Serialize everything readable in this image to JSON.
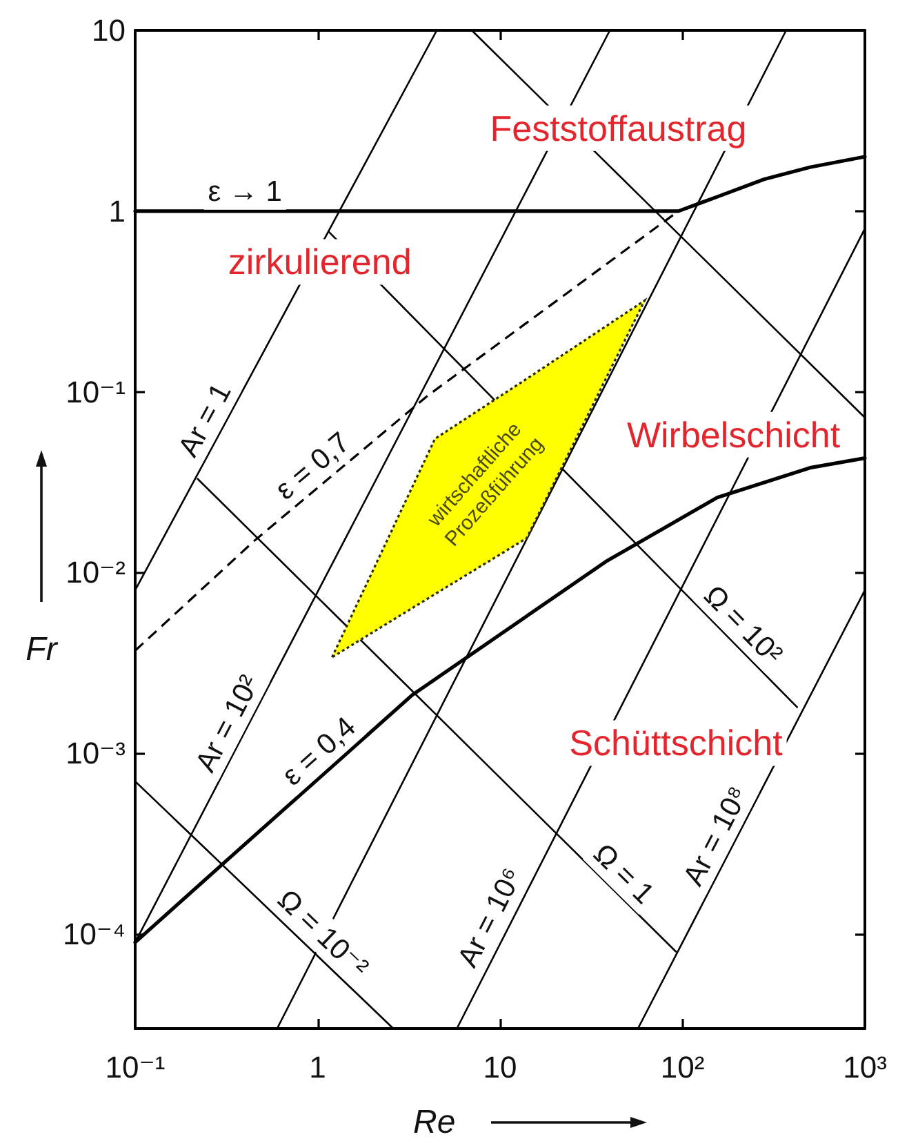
{
  "chart_data": {
    "type": "line",
    "log": "xy",
    "xlabel": "Re",
    "ylabel": "Fr",
    "xlim": [
      0.1,
      1000
    ],
    "ylim": [
      3e-05,
      10
    ],
    "xticks": [
      {
        "value": 0.1,
        "label": "10⁻¹"
      },
      1,
      10,
      {
        "value": 100,
        "label": "10²"
      },
      {
        "value": 1000,
        "label": "10³"
      }
    ],
    "yticks": [
      {
        "value": 0.0001,
        "label": "10⁻⁴"
      },
      {
        "value": 0.001,
        "label": "10⁻³"
      },
      {
        "value": 0.01,
        "label": "10⁻²"
      },
      {
        "value": 0.1,
        "label": "10⁻¹"
      },
      1,
      10
    ],
    "series": [
      {
        "color": "#000000",
        "x": [
          0.1,
          95,
          155,
          280,
          500,
          1000
        ],
        "values": [
          1,
          1,
          1.2,
          1.5,
          1.75,
          2
        ]
      },
      {
        "color": "#000000",
        "line_style": "dashed",
        "x": [
          0.1,
          0.45,
          4,
          95
        ],
        "values": [
          0.0037,
          0.015,
          0.095,
          1
        ]
      },
      {
        "color": "#000000",
        "x": [
          0.1,
          0.31,
          3.3,
          38,
          155,
          500,
          1000
        ],
        "values": [
          9e-05,
          0.00025,
          0.0021,
          0.0115,
          0.026,
          0.038,
          0.043
        ]
      },
      {
        "color": "#000000",
        "x": [
          0.1,
          4.5
        ],
        "values": [
          0.008,
          10
        ]
      },
      {
        "color": "#000000",
        "x": [
          0.1,
          40
        ],
        "values": [
          9e-05,
          10
        ]
      },
      {
        "color": "#000000",
        "x": [
          0.6,
          370
        ],
        "values": [
          3e-05,
          10
        ]
      },
      {
        "color": "#000000",
        "x": [
          5.8,
          1000
        ],
        "values": [
          3e-05,
          0.8
        ]
      },
      {
        "color": "#000000",
        "x": [
          57,
          1000
        ],
        "values": [
          3e-05,
          0.008
        ]
      },
      {
        "color": "#000000",
        "x": [
          0.1,
          2.6
        ],
        "values": [
          0.0007,
          3e-05
        ]
      },
      {
        "color": "#000000",
        "x": [
          0.22,
          92
        ],
        "values": [
          0.033,
          8e-05
        ]
      },
      {
        "color": "#000000",
        "x": [
          1.15,
          425
        ],
        "values": [
          0.77,
          0.0018
        ]
      },
      {
        "color": "#000000",
        "x": [
          7,
          1000
        ],
        "values": [
          10,
          0.072
        ]
      },
      {
        "color": "#ffff00",
        "line_style": "dotted",
        "x": [
          1.2,
          4.4,
          14,
          62
        ],
        "values": [
          null,
          null,
          null,
          null
        ],
        "lower": [
          0.0034,
          0.0076,
          0.0155,
          0.32
        ],
        "upper": [
          0.0034,
          0.055,
          0.118,
          0.32
        ]
      }
    ],
    "annotations": [
      {
        "text": "ε → 1",
        "x": 0.4,
        "y": 1
      },
      {
        "text": "Ar = 1",
        "x": 0.3,
        "y": 0.062
      },
      {
        "text": "ε = 0,7",
        "x": 1.1,
        "y": 0.032
      },
      {
        "text": "Ar = 10²",
        "x": 0.4,
        "y": 0.0013
      },
      {
        "text": "ε = 0,4",
        "x": 1.2,
        "y": 0.00085
      },
      {
        "text": "Ω = 10⁻²",
        "x": 0.9,
        "y": 8.4e-05
      },
      {
        "text": "Ar = 10⁶",
        "x": 11,
        "y": 0.00011
      },
      {
        "text": "Ω = 1",
        "x": 40,
        "y": 0.00018
      },
      {
        "text": "Ar = 10⁸",
        "x": 190,
        "y": 0.00031
      },
      {
        "text": "Ω = 10²",
        "x": 180,
        "y": 0.0043
      },
      "Feststoffaustrag",
      "zirkulierend",
      "Wirbelschicht",
      "wirtschaftliche Prozeßführung",
      "Schüttschicht"
    ]
  }
}
